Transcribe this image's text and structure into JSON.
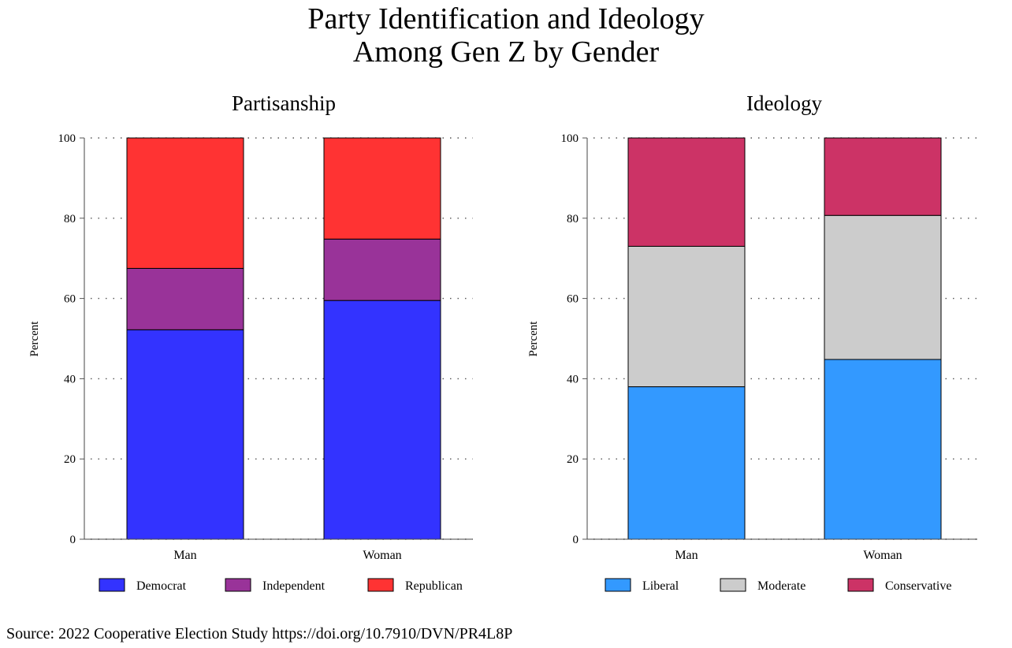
{
  "title": {
    "line1": "Party Identification and Ideology",
    "line2": "Among Gen Z by Gender"
  },
  "source": "Source: 2022 Cooperative Election Study https://doi.org/10.7910/DVN/PR4L8P",
  "chart_data": [
    {
      "type": "bar",
      "stacked": true,
      "title": "Partisanship",
      "xlabel": "",
      "ylabel": "Percent",
      "ylim": [
        0,
        100
      ],
      "yticks": [
        0,
        20,
        40,
        60,
        80,
        100
      ],
      "grid": "dotted horizontal",
      "legend": "bottom",
      "categories": [
        "Man",
        "Woman"
      ],
      "series": [
        {
          "name": "Democrat",
          "color": "#3333ff",
          "values": [
            52.2,
            59.5
          ]
        },
        {
          "name": "Independent",
          "color": "#993399",
          "values": [
            15.3,
            15.3
          ]
        },
        {
          "name": "Republican",
          "color": "#ff3333",
          "values": [
            32.5,
            25.2
          ]
        }
      ]
    },
    {
      "type": "bar",
      "stacked": true,
      "title": "Ideology",
      "xlabel": "",
      "ylabel": "Percent",
      "ylim": [
        0,
        100
      ],
      "yticks": [
        0,
        20,
        40,
        60,
        80,
        100
      ],
      "grid": "dotted horizontal",
      "legend": "bottom",
      "categories": [
        "Man",
        "Woman"
      ],
      "series": [
        {
          "name": "Liberal",
          "color": "#3399ff",
          "values": [
            38.0,
            44.8
          ]
        },
        {
          "name": "Moderate",
          "color": "#cccccc",
          "values": [
            35.0,
            35.9
          ]
        },
        {
          "name": "Conservative",
          "color": "#cc3366",
          "values": [
            27.0,
            19.3
          ]
        }
      ]
    }
  ]
}
